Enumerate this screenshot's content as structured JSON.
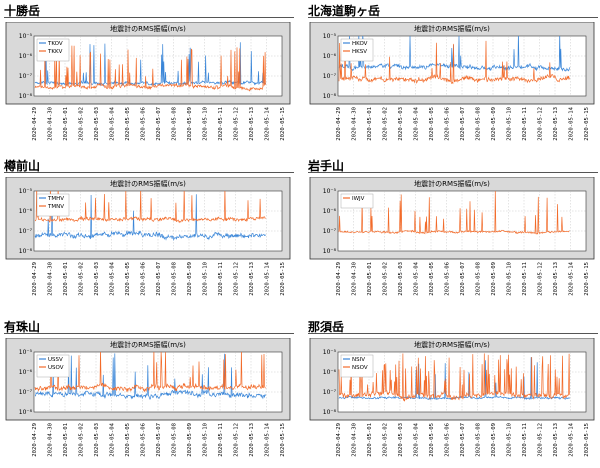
{
  "colors": {
    "blue": "#3a86d8",
    "orange": "#f26b2a"
  },
  "chart_data": [
    {
      "type": "line",
      "station": "十勝岳",
      "title": "地震計のRMS振幅(m/s)",
      "yticks": [
        "10⁻⁵",
        "10⁻⁶",
        "10⁻⁷",
        "10⁻⁸"
      ],
      "ylim_exp": [
        -8,
        -5
      ],
      "dates": [
        "2020-04-29",
        "2020-04-30",
        "2020-05-01",
        "2020-05-02",
        "2020-05-03",
        "2020-05-04",
        "2020-05-05",
        "2020-05-06",
        "2020-05-07",
        "2020-05-08",
        "2020-05-09",
        "2020-05-10",
        "2020-05-11",
        "2020-05-12",
        "2020-05-13",
        "2020-05-14",
        "2020-05-15"
      ],
      "series": [
        {
          "name": "TKOV",
          "color": "blue",
          "base": -7.35,
          "var": 0.18,
          "spikes": 0.04,
          "seed": 11
        },
        {
          "name": "TKKV",
          "color": "orange",
          "base": -7.55,
          "var": 0.22,
          "spikes": 0.1,
          "seed": 12
        }
      ]
    },
    {
      "type": "line",
      "station": "北海道駒ヶ岳",
      "title": "地震計のRMS振幅(m/s)",
      "yticks": [
        "10⁻⁵",
        "10⁻⁶",
        "10⁻⁷",
        "10⁻⁸"
      ],
      "ylim_exp": [
        -8,
        -5
      ],
      "dates": [
        "2020-04-29",
        "2020-04-30",
        "2020-05-01",
        "2020-05-02",
        "2020-05-03",
        "2020-05-04",
        "2020-05-05",
        "2020-05-06",
        "2020-05-07",
        "2020-05-08",
        "2020-05-09",
        "2020-05-10",
        "2020-05-11",
        "2020-05-12",
        "2020-05-13",
        "2020-05-14",
        "2020-05-15"
      ],
      "series": [
        {
          "name": "HKOV",
          "color": "blue",
          "base": -6.55,
          "var": 0.25,
          "spikes": 0.03,
          "seed": 21
        },
        {
          "name": "HKSV",
          "color": "orange",
          "base": -7.15,
          "var": 0.28,
          "spikes": 0.04,
          "seed": 22
        }
      ]
    },
    {
      "type": "line",
      "station": "樽前山",
      "title": "地震計のRMS振幅(m/s)",
      "yticks": [
        "10⁻⁵",
        "10⁻⁶",
        "10⁻⁷",
        "10⁻⁸"
      ],
      "ylim_exp": [
        -8,
        -5
      ],
      "dates": [
        "2020-04-29",
        "2020-04-30",
        "2020-05-01",
        "2020-05-02",
        "2020-05-03",
        "2020-05-04",
        "2020-05-05",
        "2020-05-06",
        "2020-05-07",
        "2020-05-08",
        "2020-05-09",
        "2020-05-10",
        "2020-05-11",
        "2020-05-12",
        "2020-05-13",
        "2020-05-14",
        "2020-05-15"
      ],
      "series": [
        {
          "name": "TMHV",
          "color": "blue",
          "base": -7.2,
          "var": 0.3,
          "spikes": 0.02,
          "seed": 31
        },
        {
          "name": "TMNV",
          "color": "orange",
          "base": -6.4,
          "var": 0.22,
          "spikes": 0.03,
          "seed": 32
        }
      ]
    },
    {
      "type": "line",
      "station": "岩手山",
      "title": "地震計のRMS振幅(m/s)",
      "yticks": [
        "10⁻⁵",
        "10⁻⁶",
        "10⁻⁷",
        "10⁻⁸"
      ],
      "ylim_exp": [
        -8,
        -5
      ],
      "dates": [
        "2020-04-29",
        "2020-04-30",
        "2020-05-01",
        "2020-05-02",
        "2020-05-03",
        "2020-05-04",
        "2020-05-05",
        "2020-05-06",
        "2020-05-07",
        "2020-05-08",
        "2020-05-09",
        "2020-05-10",
        "2020-05-11",
        "2020-05-12",
        "2020-05-13",
        "2020-05-14",
        "2020-05-15"
      ],
      "series": [
        {
          "name": "IWJV",
          "color": "orange",
          "base": -7.05,
          "var": 0.12,
          "spikes": 0.07,
          "seed": 41
        }
      ]
    },
    {
      "type": "line",
      "station": "有珠山",
      "title": "地震計のRMS振幅(m/s)",
      "yticks": [
        "10⁻⁵",
        "10⁻⁶",
        "10⁻⁷",
        "10⁻⁸"
      ],
      "ylim_exp": [
        -8,
        -5
      ],
      "dates": [
        "2020-04-29",
        "2020-04-30",
        "2020-05-01",
        "2020-05-02",
        "2020-05-03",
        "2020-05-04",
        "2020-05-05",
        "2020-05-06",
        "2020-05-07",
        "2020-05-08",
        "2020-05-09",
        "2020-05-10",
        "2020-05-11",
        "2020-05-12",
        "2020-05-13",
        "2020-05-14",
        "2020-05-15"
      ],
      "series": [
        {
          "name": "USSV",
          "color": "blue",
          "base": -7.1,
          "var": 0.3,
          "spikes": 0.03,
          "seed": 51
        },
        {
          "name": "USOV",
          "color": "orange",
          "base": -6.8,
          "var": 0.3,
          "spikes": 0.05,
          "seed": 52
        }
      ]
    },
    {
      "type": "line",
      "station": "那須岳",
      "title": "地震計のRMS振幅(m/s)",
      "yticks": [
        "10⁻⁵",
        "10⁻⁶",
        "10⁻⁷",
        "10⁻⁸"
      ],
      "ylim_exp": [
        -8,
        -5
      ],
      "dates": [
        "2020-04-29",
        "2020-04-30",
        "2020-05-01",
        "2020-05-02",
        "2020-05-03",
        "2020-05-04",
        "2020-05-05",
        "2020-05-06",
        "2020-05-07",
        "2020-05-08",
        "2020-05-09",
        "2020-05-10",
        "2020-05-11",
        "2020-05-12",
        "2020-05-13",
        "2020-05-14",
        "2020-05-15"
      ],
      "series": [
        {
          "name": "NSIV",
          "color": "blue",
          "base": -7.3,
          "var": 0.12,
          "spikes": 0.02,
          "seed": 61
        },
        {
          "name": "NSOV",
          "color": "orange",
          "base": -7.15,
          "var": 0.3,
          "spikes": 0.14,
          "seed": 62
        }
      ]
    }
  ]
}
